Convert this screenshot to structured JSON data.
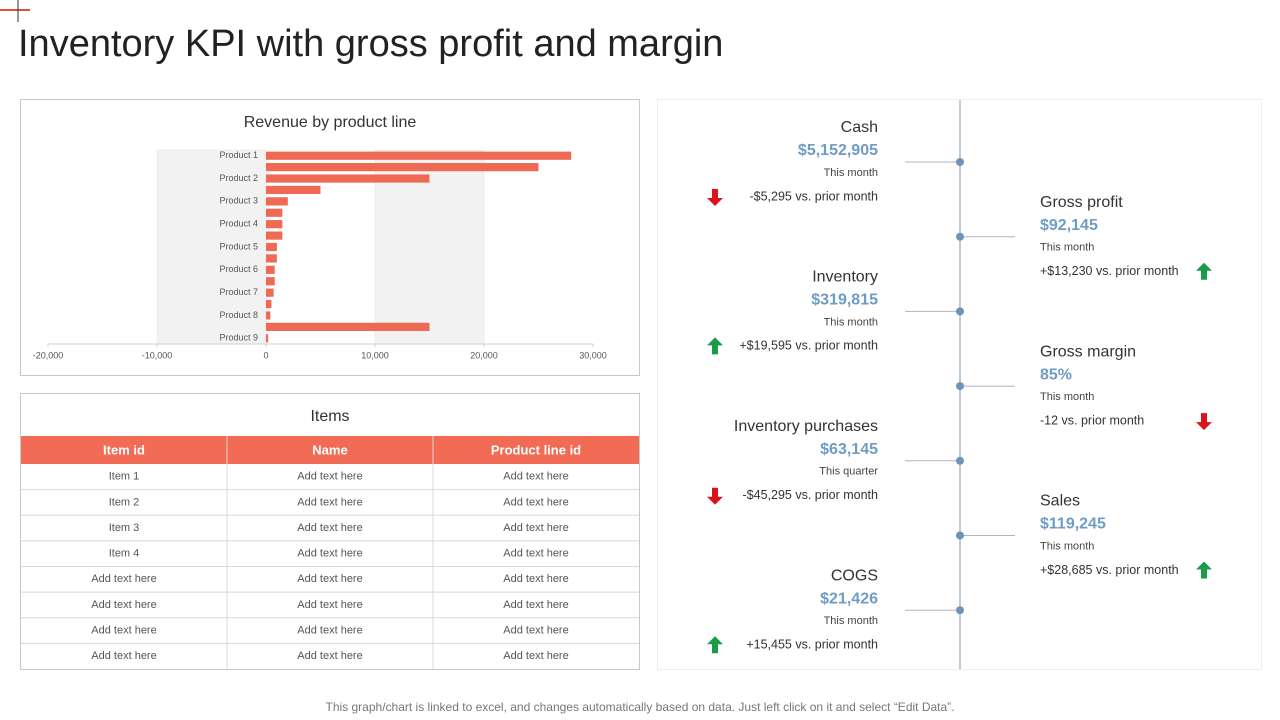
{
  "title": "Inventory KPI with gross profit and margin",
  "chart_data": {
    "type": "barh",
    "title": "Revenue by product line",
    "categories": [
      "Product 1",
      null,
      "Product 2",
      null,
      "Product 3",
      null,
      "Product 4",
      null,
      "Product 5",
      null,
      "Product 6",
      null,
      "Product 7",
      null,
      "Product 8",
      null,
      "Product 9"
    ],
    "values": [
      28000,
      25000,
      15000,
      5000,
      2000,
      1500,
      1500,
      1500,
      1000,
      1000,
      800,
      800,
      700,
      500,
      400,
      15000,
      200
    ],
    "color": "#ee6a55",
    "xlim": [
      -20000,
      30000
    ],
    "xticks": [
      {
        "value": -20000,
        "label": "-20,000"
      },
      {
        "value": -10000,
        "label": "-10,000"
      },
      0,
      {
        "value": 10000,
        "label": "10,000"
      },
      {
        "value": 20000,
        "label": "20,000"
      },
      {
        "value": 30000,
        "label": "30,000"
      }
    ]
  },
  "table": {
    "title": "Items",
    "columns": [
      "Item id",
      "Name",
      "Product line id"
    ],
    "rows": [
      [
        "Item 1",
        "Add text here",
        "Add text here"
      ],
      [
        "Item 2",
        "Add text here",
        "Add text here"
      ],
      [
        "Item 3",
        "Add text here",
        "Add text here"
      ],
      [
        "Item 4",
        "Add text here",
        "Add text here"
      ],
      [
        "Add text here",
        "Add text here",
        "Add text here"
      ],
      [
        "Add text here",
        "Add text here",
        "Add text here"
      ],
      [
        "Add text here",
        "Add text here",
        "Add text here"
      ],
      [
        "Add text here",
        "Add text here",
        "Add text here"
      ]
    ]
  },
  "kpis": [
    {
      "title": "Cash",
      "value": "$5,152,905",
      "period": "This month",
      "change": "-$5,295 vs. prior month"
    },
    {
      "title": "Gross profit",
      "value": "$92,145",
      "period": "This month",
      "change": "+$13,230 vs. prior month"
    },
    {
      "title": "Inventory",
      "value": "$319,815",
      "period": "This month",
      "change": "+$19,595 vs. prior month"
    },
    {
      "title": "Gross margin",
      "value": "85%",
      "period": "This month",
      "change": "-12 vs. prior month"
    },
    {
      "title": "Inventory purchases",
      "value": "$63,145",
      "period": "This quarter",
      "change": "-$45,295 vs. prior month"
    },
    {
      "title": "Sales",
      "value": "$119,245",
      "period": "This month",
      "change": "+$28,685 vs. prior month"
    },
    {
      "title": "COGS",
      "value": "$21,426",
      "period": "This month",
      "change": "+15,455 vs. prior month"
    }
  ],
  "footer": "This graph/chart is linked to excel, and changes automatically based on data. Just left click on it and select “Edit Data”."
}
